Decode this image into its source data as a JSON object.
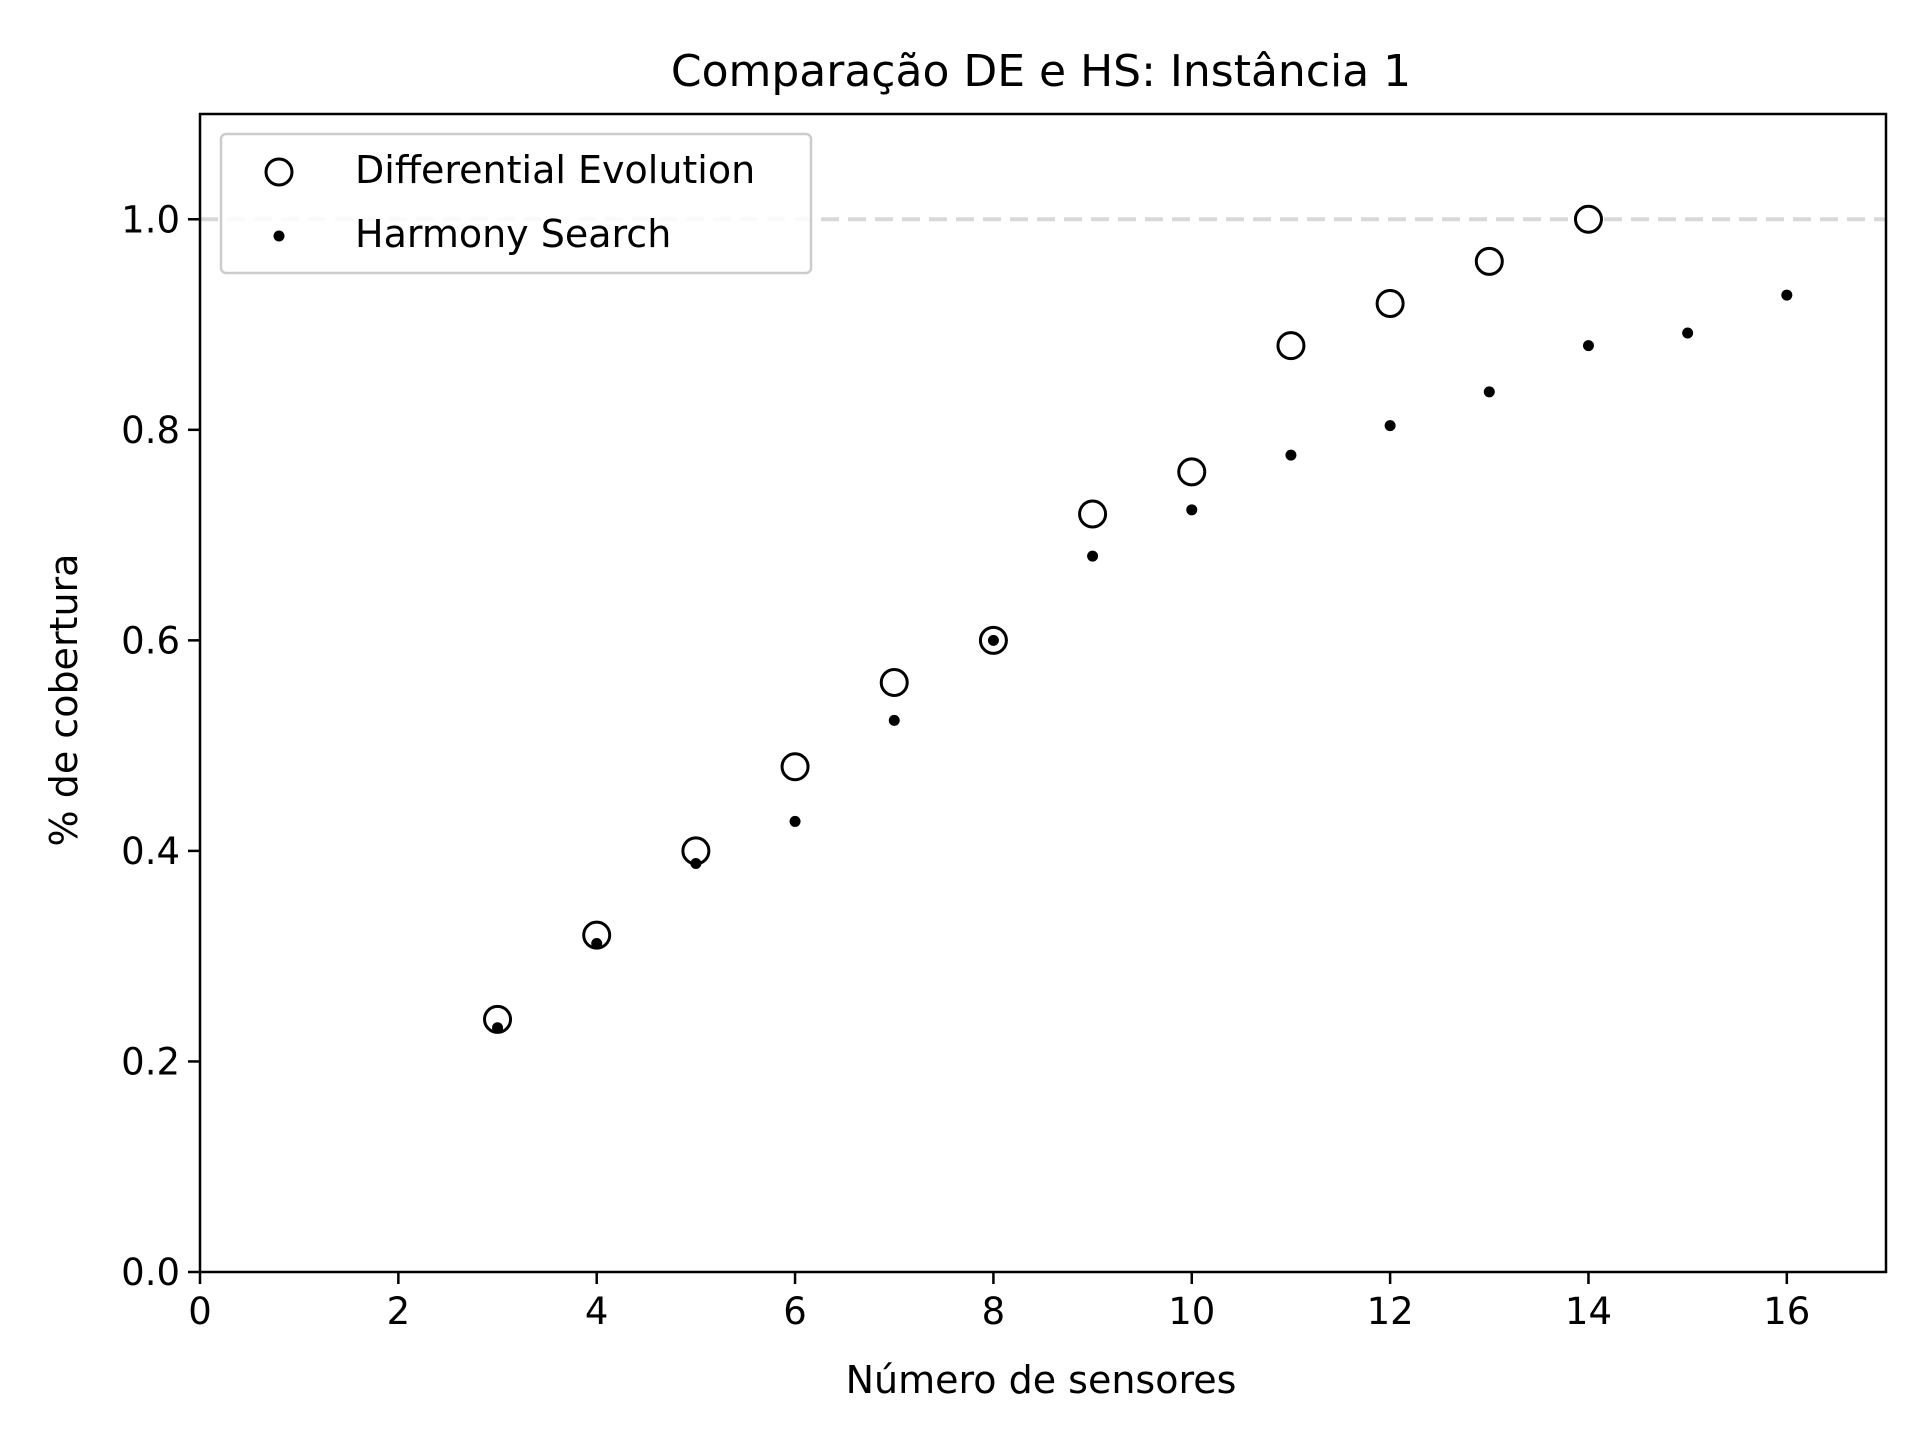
{
  "chart_data": {
    "type": "scatter",
    "title": "Comparação DE e HS: Instância 1",
    "xlabel": "Número de sensores",
    "ylabel": "% de cobertura",
    "xlim": [
      0,
      17
    ],
    "ylim": [
      0,
      1.1
    ],
    "xticks": [
      0,
      2,
      4,
      6,
      8,
      10,
      12,
      14,
      16
    ],
    "yticks": [
      0.0,
      0.2,
      0.4,
      0.6,
      0.8,
      1.0
    ],
    "xtick_labels": [
      "0",
      "2",
      "4",
      "6",
      "8",
      "10",
      "12",
      "14",
      "16"
    ],
    "ytick_labels": [
      "0.0",
      "0.2",
      "0.4",
      "0.6",
      "0.8",
      "1.0"
    ],
    "reference_line": {
      "y": 1.0,
      "style": "dashed",
      "color": "#d9d9d9"
    },
    "legend_position": "upper-left",
    "grid": false,
    "series": [
      {
        "name": "Differential Evolution",
        "marker": "open-circle",
        "color": "#000000",
        "x": [
          3,
          4,
          5,
          6,
          7,
          8,
          9,
          10,
          11,
          12,
          13,
          14
        ],
        "y": [
          0.24,
          0.32,
          0.4,
          0.48,
          0.56,
          0.6,
          0.72,
          0.76,
          0.88,
          0.92,
          0.96,
          1.0
        ]
      },
      {
        "name": "Harmony Search",
        "marker": "dot",
        "color": "#000000",
        "x": [
          3,
          4,
          5,
          6,
          7,
          8,
          9,
          10,
          11,
          12,
          13,
          14,
          15,
          16
        ],
        "y": [
          0.232,
          0.312,
          0.388,
          0.428,
          0.524,
          0.6,
          0.68,
          0.724,
          0.776,
          0.804,
          0.836,
          0.88,
          0.892,
          0.928
        ]
      }
    ]
  }
}
